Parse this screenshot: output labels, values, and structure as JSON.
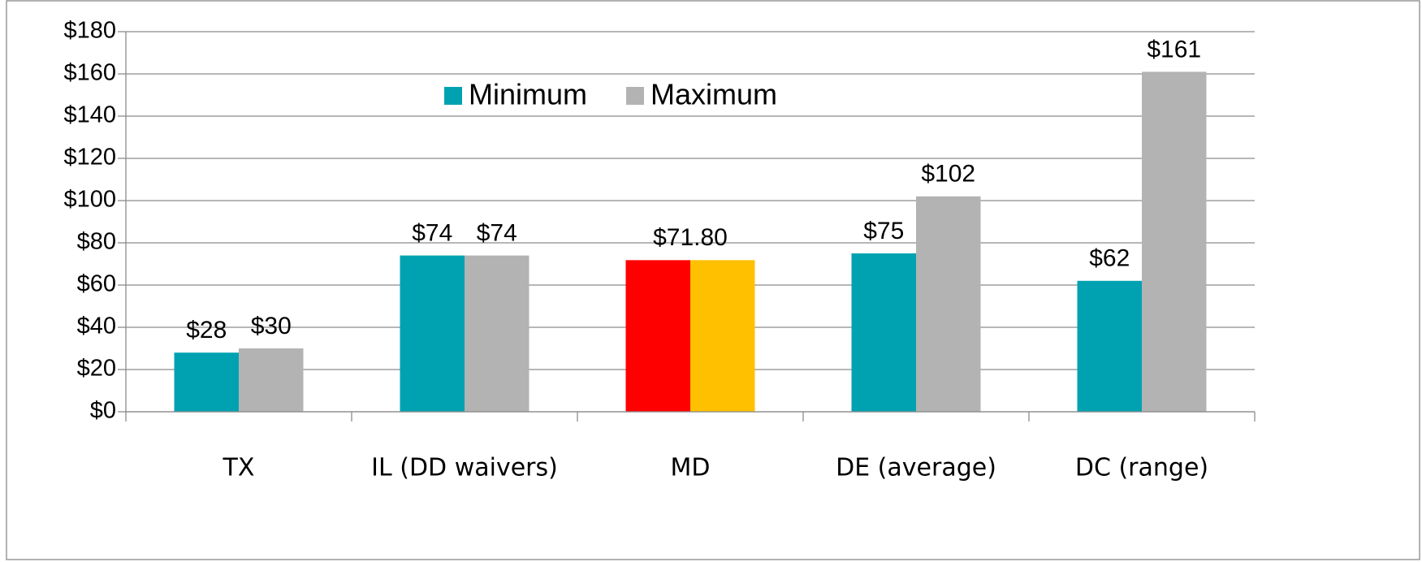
{
  "chart_data": {
    "type": "bar",
    "categories": [
      "TX",
      "IL (DD waivers)",
      "MD",
      "DE (average)",
      "DC (range)"
    ],
    "series": [
      {
        "name": "Minimum",
        "color": "#00a2b1",
        "colors": [
          "#00a2b1",
          "#00a2b1",
          "#ff0000",
          "#00a2b1",
          "#00a2b1"
        ],
        "values": [
          28,
          74,
          71.8,
          75,
          62
        ],
        "value_labels": [
          "$28",
          "$74",
          "$71.80",
          "$75",
          "$62"
        ]
      },
      {
        "name": "Maximum",
        "color": "#b3b3b3",
        "colors": [
          "#b3b3b3",
          "#b3b3b3",
          "#ffc000",
          "#b3b3b3",
          "#b3b3b3"
        ],
        "values": [
          30,
          74,
          71.8,
          102,
          161
        ],
        "value_labels": [
          "$30",
          "$74",
          null,
          "$102",
          "$161"
        ]
      }
    ],
    "ylim": [
      0,
      180
    ],
    "yticks": [
      {
        "value": 0,
        "label": "$0"
      },
      {
        "value": 20,
        "label": "$20"
      },
      {
        "value": 40,
        "label": "$40"
      },
      {
        "value": 60,
        "label": "$60"
      },
      {
        "value": 80,
        "label": "$80"
      },
      {
        "value": 100,
        "label": "$100"
      },
      {
        "value": 120,
        "label": "$120"
      },
      {
        "value": 140,
        "label": "$140"
      },
      {
        "value": 160,
        "label": "$160"
      },
      {
        "value": 180,
        "label": "$180"
      }
    ],
    "grid": true,
    "legend": "top"
  }
}
